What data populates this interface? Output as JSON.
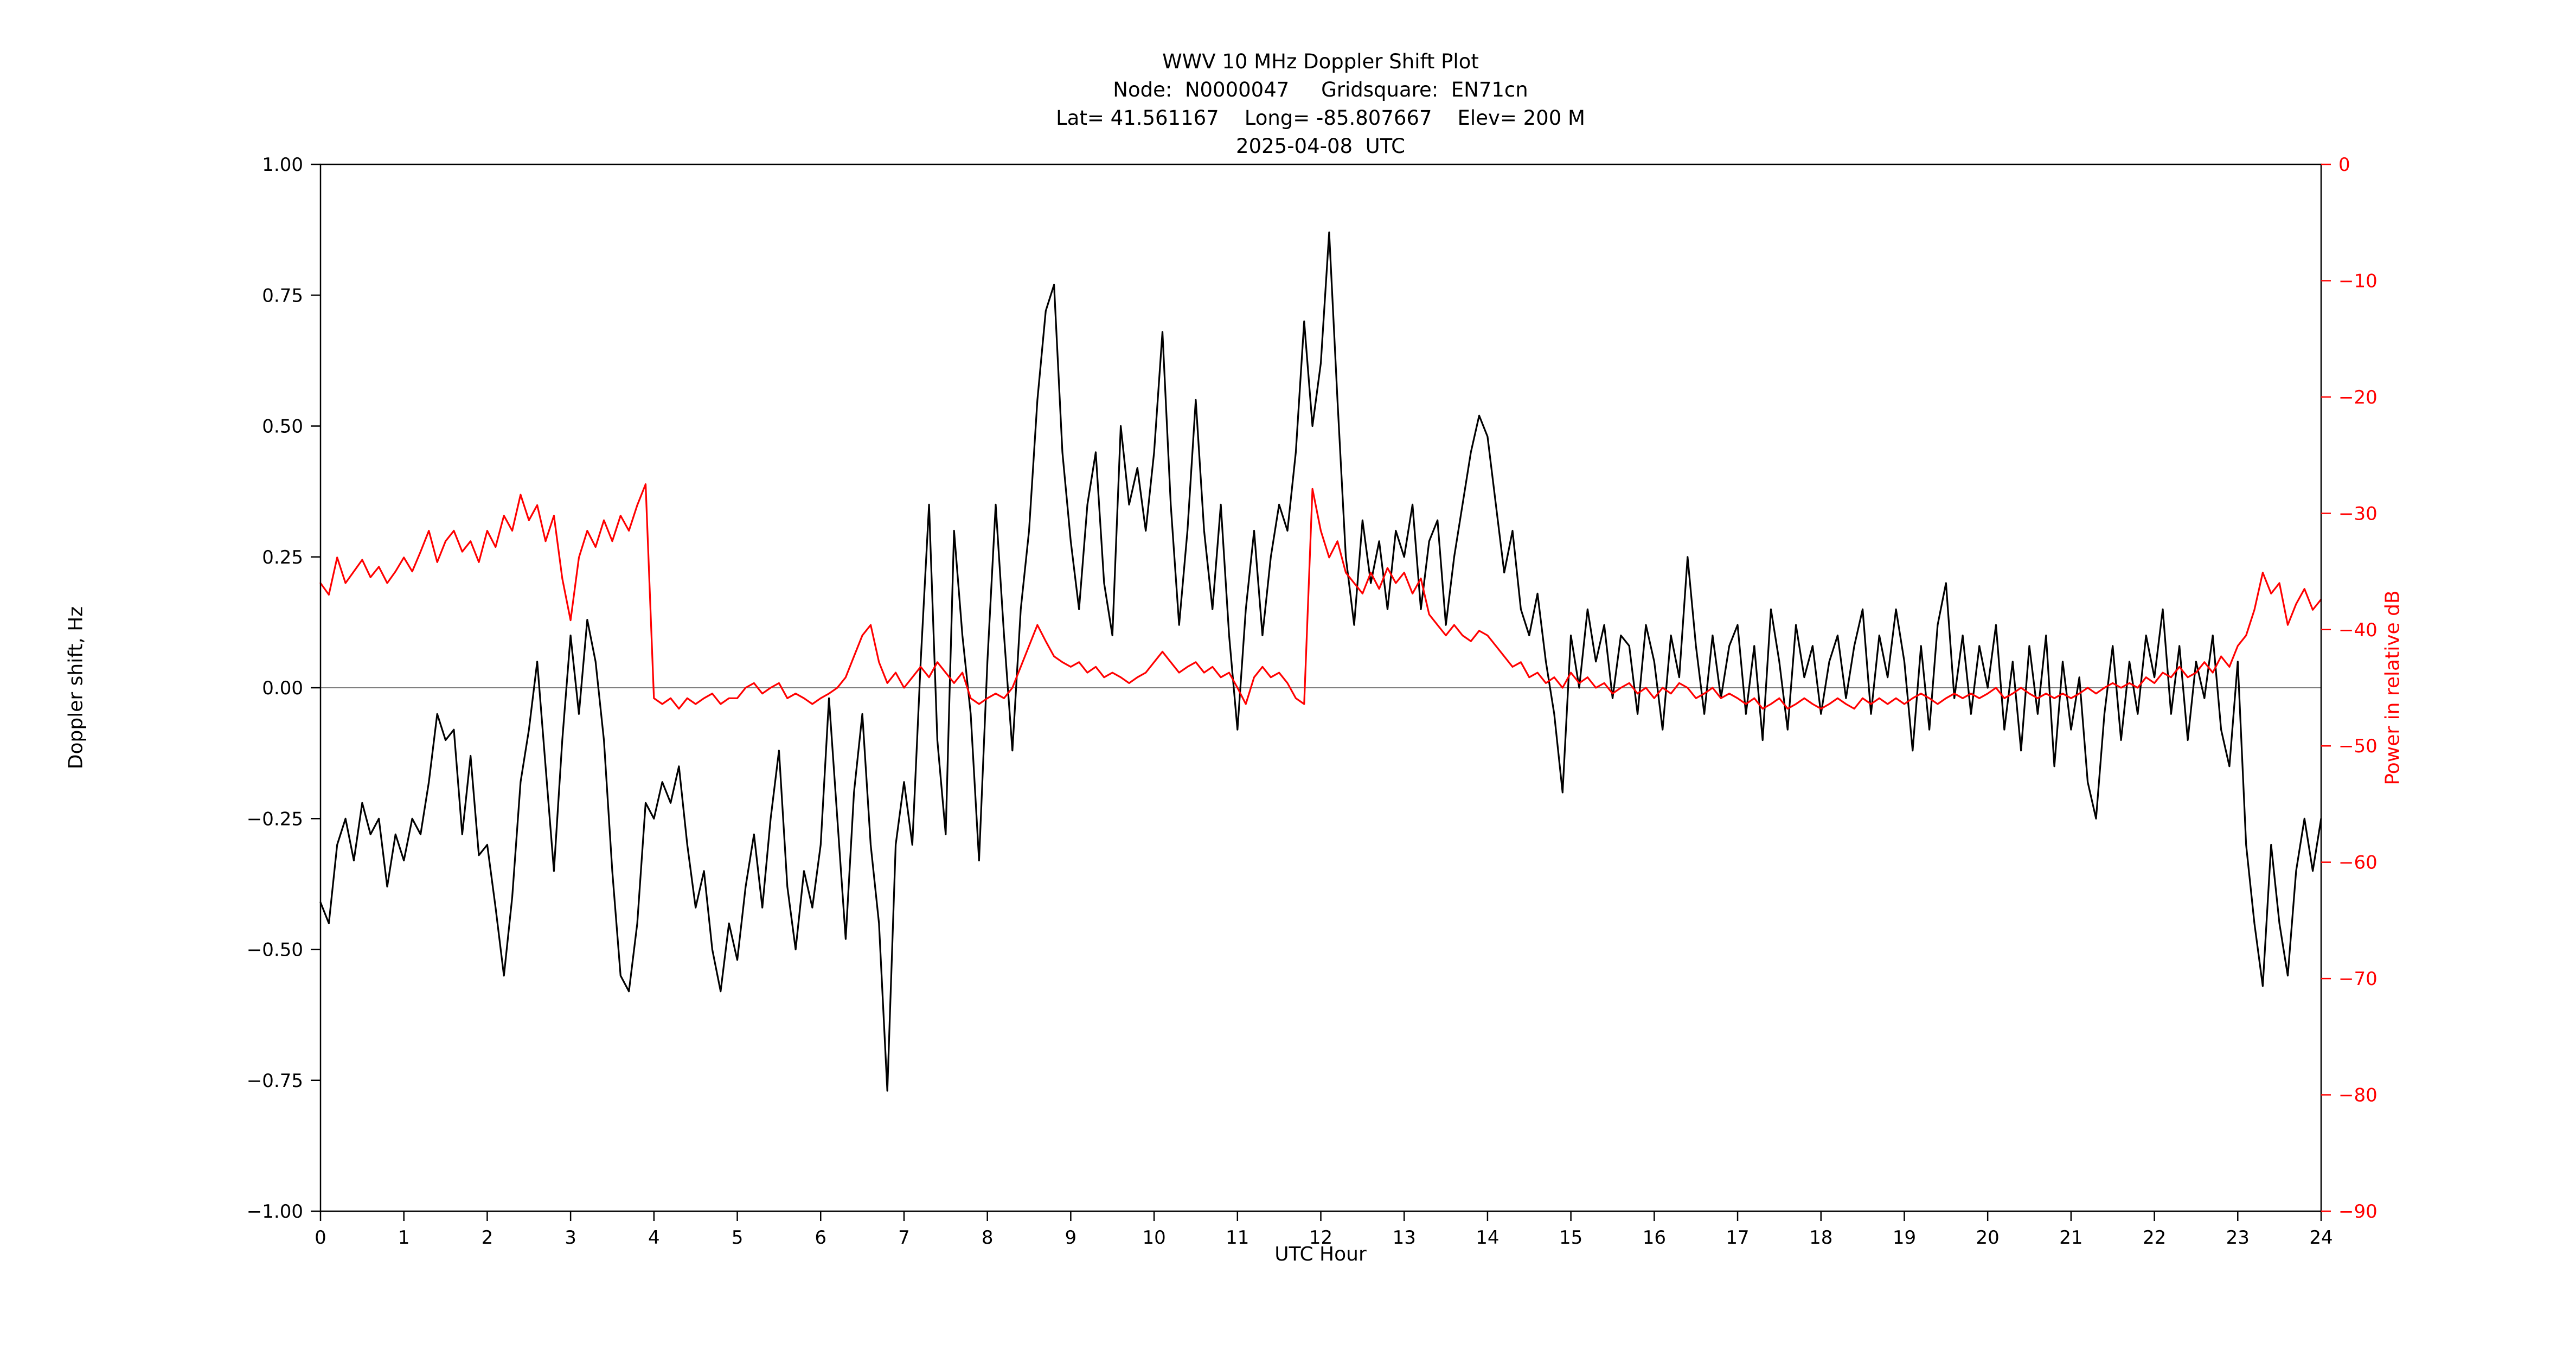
{
  "page": {
    "background": "#ffffff"
  },
  "chart_data": {
    "type": "line",
    "title_lines": [
      "WWV 10 MHz Doppler Shift Plot",
      "Node:  N0000047     Gridsquare:  EN71cn",
      "Lat= 41.561167    Long= -85.807667    Elev= 200 M",
      "2025-04-08  UTC"
    ],
    "xlabel": "UTC Hour",
    "ylabel_left": "Doppler shift, Hz",
    "ylabel_right": "Power in relative dB",
    "xlim": [
      0,
      24
    ],
    "ylim_left": [
      -1.0,
      1.0
    ],
    "ylim_right": [
      -90,
      0
    ],
    "grid": false,
    "legend_position": "none",
    "zero_line": {
      "y": 0.0,
      "color": "#808080"
    },
    "colors": {
      "doppler": "#000000",
      "power": "#ff0000",
      "frame": "#000000"
    },
    "x_ticks": {
      "values": [
        0,
        1,
        2,
        3,
        4,
        5,
        6,
        7,
        8,
        9,
        10,
        11,
        12,
        13,
        14,
        15,
        16,
        17,
        18,
        19,
        20,
        21,
        22,
        23,
        24
      ],
      "labels": [
        "0",
        "1",
        "2",
        "3",
        "4",
        "5",
        "6",
        "7",
        "8",
        "9",
        "10",
        "11",
        "12",
        "13",
        "14",
        "15",
        "16",
        "17",
        "18",
        "19",
        "20",
        "21",
        "22",
        "23",
        "24"
      ]
    },
    "y_ticks_left": {
      "values": [
        1.0,
        0.75,
        0.5,
        0.25,
        0.0,
        -0.25,
        -0.5,
        -0.75,
        -1.0
      ],
      "labels": [
        "1.00",
        "0.75",
        "0.50",
        "0.25",
        "0.00",
        "−0.25",
        "−0.50",
        "−0.75",
        "−1.00"
      ]
    },
    "y_ticks_right": {
      "values": [
        0,
        -10,
        -20,
        -30,
        -40,
        -50,
        -60,
        -70,
        -80,
        -90
      ],
      "labels": [
        "0",
        "−10",
        "−20",
        "−30",
        "−40",
        "−50",
        "−60",
        "−70",
        "−80",
        "−90"
      ]
    },
    "series": [
      {
        "name": "Doppler shift (Hz)",
        "axis": "left",
        "color": "#000000",
        "x_start": 0.0,
        "x_step": 0.1,
        "values": [
          -0.41,
          -0.45,
          -0.3,
          -0.25,
          -0.33,
          -0.22,
          -0.28,
          -0.25,
          -0.38,
          -0.28,
          -0.33,
          -0.25,
          -0.28,
          -0.18,
          -0.05,
          -0.1,
          -0.08,
          -0.28,
          -0.13,
          -0.32,
          -0.3,
          -0.42,
          -0.55,
          -0.4,
          -0.18,
          -0.08,
          0.05,
          -0.15,
          -0.35,
          -0.1,
          0.1,
          -0.05,
          0.13,
          0.05,
          -0.1,
          -0.35,
          -0.55,
          -0.58,
          -0.45,
          -0.22,
          -0.25,
          -0.18,
          -0.22,
          -0.15,
          -0.3,
          -0.42,
          -0.35,
          -0.5,
          -0.58,
          -0.45,
          -0.52,
          -0.38,
          -0.28,
          -0.42,
          -0.25,
          -0.12,
          -0.38,
          -0.5,
          -0.35,
          -0.42,
          -0.3,
          -0.02,
          -0.25,
          -0.48,
          -0.2,
          -0.05,
          -0.3,
          -0.45,
          -0.77,
          -0.3,
          -0.18,
          -0.3,
          0.05,
          0.35,
          -0.1,
          -0.28,
          0.3,
          0.1,
          -0.05,
          -0.33,
          0.05,
          0.35,
          0.1,
          -0.12,
          0.15,
          0.3,
          0.55,
          0.72,
          0.77,
          0.45,
          0.28,
          0.15,
          0.35,
          0.45,
          0.2,
          0.1,
          0.5,
          0.35,
          0.42,
          0.3,
          0.45,
          0.68,
          0.35,
          0.12,
          0.3,
          0.55,
          0.3,
          0.15,
          0.35,
          0.1,
          -0.08,
          0.15,
          0.3,
          0.1,
          0.25,
          0.35,
          0.3,
          0.45,
          0.7,
          0.5,
          0.62,
          0.87,
          0.55,
          0.25,
          0.12,
          0.32,
          0.2,
          0.28,
          0.15,
          0.3,
          0.25,
          0.35,
          0.15,
          0.28,
          0.32,
          0.12,
          0.25,
          0.35,
          0.45,
          0.52,
          0.48,
          0.35,
          0.22,
          0.3,
          0.15,
          0.1,
          0.18,
          0.05,
          -0.05,
          -0.2,
          0.1,
          0.0,
          0.15,
          0.05,
          0.12,
          -0.02,
          0.1,
          0.08,
          -0.05,
          0.12,
          0.05,
          -0.08,
          0.1,
          0.02,
          0.25,
          0.08,
          -0.05,
          0.1,
          -0.02,
          0.08,
          0.12,
          -0.05,
          0.08,
          -0.1,
          0.15,
          0.05,
          -0.08,
          0.12,
          0.02,
          0.08,
          -0.05,
          0.05,
          0.1,
          -0.02,
          0.08,
          0.15,
          -0.05,
          0.1,
          0.02,
          0.15,
          0.05,
          -0.12,
          0.08,
          -0.08,
          0.12,
          0.2,
          -0.02,
          0.1,
          -0.05,
          0.08,
          0.0,
          0.12,
          -0.08,
          0.05,
          -0.12,
          0.08,
          -0.05,
          0.1,
          -0.15,
          0.05,
          -0.08,
          0.02,
          -0.18,
          -0.25,
          -0.05,
          0.08,
          -0.1,
          0.05,
          -0.05,
          0.1,
          0.02,
          0.15,
          -0.05,
          0.08,
          -0.1,
          0.05,
          -0.02,
          0.1,
          -0.08,
          -0.15,
          0.05,
          -0.3,
          -0.45,
          -0.57,
          -0.3,
          -0.45,
          -0.55,
          -0.35,
          -0.25,
          -0.35,
          -0.25
        ]
      },
      {
        "name": "Power in relative dB",
        "axis": "right",
        "color": "#ff0000",
        "x_start": 0.0,
        "x_step": 0.1,
        "values": [
          -36.0,
          -37.0,
          -33.8,
          -36.0,
          -35.0,
          -34.0,
          -35.5,
          -34.6,
          -36.0,
          -35.0,
          -33.8,
          -35.0,
          -33.3,
          -31.5,
          -34.2,
          -32.4,
          -31.5,
          -33.3,
          -32.4,
          -34.2,
          -31.5,
          -32.9,
          -30.2,
          -31.5,
          -28.4,
          -30.6,
          -29.3,
          -32.4,
          -30.2,
          -35.6,
          -39.2,
          -33.8,
          -31.5,
          -32.9,
          -30.6,
          -32.4,
          -30.2,
          -31.5,
          -29.3,
          -27.5,
          -45.9,
          -46.4,
          -45.9,
          -46.8,
          -45.9,
          -46.4,
          -45.9,
          -45.5,
          -46.4,
          -45.9,
          -45.9,
          -45.0,
          -44.6,
          -45.5,
          -45.0,
          -44.6,
          -45.9,
          -45.5,
          -45.9,
          -46.4,
          -45.9,
          -45.5,
          -45.0,
          -44.1,
          -42.3,
          -40.5,
          -39.6,
          -42.8,
          -44.6,
          -43.7,
          -45.0,
          -44.1,
          -43.2,
          -44.1,
          -42.8,
          -43.7,
          -44.6,
          -43.7,
          -45.9,
          -46.4,
          -45.9,
          -45.5,
          -45.9,
          -45.0,
          -43.2,
          -41.4,
          -39.6,
          -41.0,
          -42.3,
          -42.8,
          -43.2,
          -42.8,
          -43.7,
          -43.2,
          -44.1,
          -43.7,
          -44.1,
          -44.6,
          -44.1,
          -43.7,
          -42.8,
          -41.9,
          -42.8,
          -43.7,
          -43.2,
          -42.8,
          -43.7,
          -43.2,
          -44.1,
          -43.7,
          -45.0,
          -46.4,
          -44.1,
          -43.2,
          -44.1,
          -43.7,
          -44.6,
          -45.9,
          -46.4,
          -27.9,
          -31.5,
          -33.8,
          -32.4,
          -35.1,
          -36.0,
          -36.9,
          -35.1,
          -36.5,
          -34.7,
          -36.0,
          -35.1,
          -36.9,
          -35.6,
          -38.7,
          -39.6,
          -40.5,
          -39.6,
          -40.5,
          -41.0,
          -40.1,
          -40.5,
          -41.4,
          -42.3,
          -43.2,
          -42.8,
          -44.1,
          -43.7,
          -44.6,
          -44.1,
          -45.0,
          -43.7,
          -44.6,
          -44.1,
          -45.0,
          -44.6,
          -45.5,
          -45.0,
          -44.6,
          -45.5,
          -45.0,
          -45.9,
          -45.0,
          -45.5,
          -44.6,
          -45.0,
          -45.9,
          -45.5,
          -45.0,
          -45.9,
          -45.5,
          -45.9,
          -46.4,
          -45.9,
          -46.8,
          -46.4,
          -45.9,
          -46.8,
          -46.4,
          -45.9,
          -46.4,
          -46.8,
          -46.4,
          -45.9,
          -46.4,
          -46.8,
          -45.9,
          -46.4,
          -45.9,
          -46.4,
          -45.9,
          -46.4,
          -45.9,
          -45.5,
          -45.9,
          -46.4,
          -45.9,
          -45.5,
          -45.9,
          -45.5,
          -45.9,
          -45.5,
          -45.0,
          -45.9,
          -45.5,
          -45.0,
          -45.5,
          -45.9,
          -45.5,
          -45.9,
          -45.5,
          -45.9,
          -45.5,
          -45.0,
          -45.5,
          -45.0,
          -44.6,
          -45.0,
          -44.6,
          -45.0,
          -44.1,
          -44.6,
          -43.7,
          -44.1,
          -43.2,
          -44.1,
          -43.7,
          -42.8,
          -43.7,
          -42.3,
          -43.2,
          -41.4,
          -40.5,
          -38.3,
          -35.1,
          -36.9,
          -36.0,
          -39.6,
          -37.8,
          -36.5,
          -38.3,
          -37.4
        ]
      }
    ]
  }
}
